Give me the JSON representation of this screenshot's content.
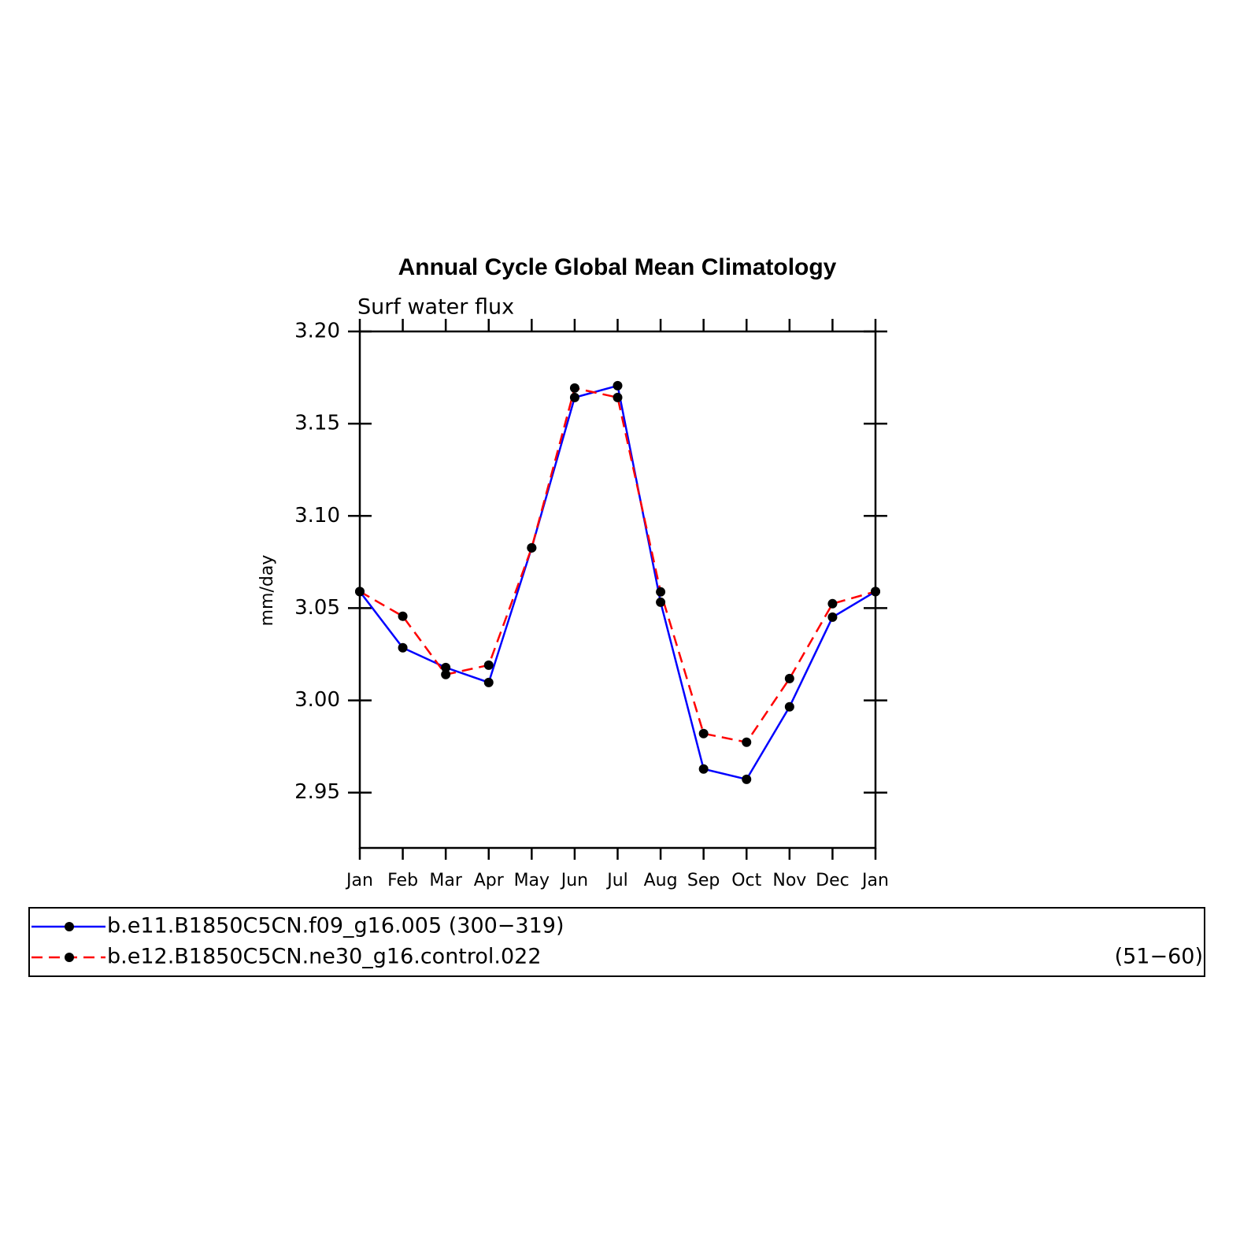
{
  "chart_data": {
    "type": "line",
    "title": "Annual Cycle Global Mean Climatology",
    "subtitle": "Surf water flux",
    "y_label": "mm/day",
    "categories": [
      "Jan",
      "Feb",
      "Mar",
      "Apr",
      "May",
      "Jun",
      "Jul",
      "Aug",
      "Sep",
      "Oct",
      "Nov",
      "Dec",
      "Jan"
    ],
    "series": [
      {
        "name": "b.e11.B1850C5CN.f09_g16.005 (300−319)",
        "color": "#0000ff",
        "dash": false,
        "values": [
          3.059,
          3.0285,
          3.0178,
          3.0097,
          3.0827,
          3.1642,
          3.1706,
          3.0532,
          2.9628,
          2.9572,
          2.9965,
          3.0451,
          3.059
        ]
      },
      {
        "name": "b.e12.B1850C5CN.ne30_g16.control.022",
        "years": "(51−60)",
        "color": "#ff0000",
        "dash": true,
        "values": [
          3.059,
          3.0456,
          3.014,
          3.0191,
          3.0827,
          3.1693,
          3.1642,
          3.0588,
          2.982,
          2.9773,
          3.0118,
          3.0524,
          3.059
        ]
      }
    ],
    "marker_color": "#000000",
    "ylim": [
      2.92,
      3.2
    ],
    "yticks": [
      {
        "value": 2.95,
        "label": "2.95"
      },
      {
        "value": 3,
        "label": "3.00"
      },
      3.05,
      {
        "value": 3.1,
        "label": "3.10"
      },
      3.15,
      {
        "value": 3.2,
        "label": "3.20"
      }
    ]
  }
}
